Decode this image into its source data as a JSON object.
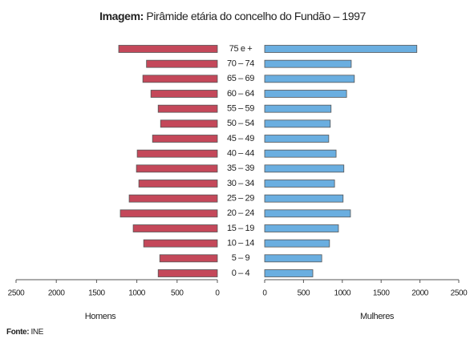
{
  "chart_data": {
    "type": "pyramid",
    "title_prefix": "Imagem:",
    "title": "Pirâmide etária do concelho do Fundão – 1997",
    "categories": [
      "75 e +",
      "70 – 74",
      "65 – 69",
      "60 – 64",
      "55 – 59",
      "50 – 54",
      "45 – 49",
      "40 – 44",
      "35 – 39",
      "30 – 34",
      "25 – 29",
      "20 – 24",
      "15 – 19",
      "10 – 14",
      "5 – 9",
      "0 – 4"
    ],
    "series": [
      {
        "name": "Homens",
        "color": "#c4485a",
        "values": [
          1225,
          880,
          925,
          825,
          735,
          705,
          805,
          995,
          1005,
          975,
          1095,
          1205,
          1045,
          915,
          715,
          735
        ]
      },
      {
        "name": "Mulheres",
        "color": "#6aaee0",
        "values": [
          1960,
          1115,
          1155,
          1055,
          855,
          845,
          825,
          920,
          1020,
          900,
          1010,
          1105,
          950,
          835,
          735,
          620
        ]
      }
    ],
    "xlim": [
      0,
      2500
    ],
    "xticks": [
      0,
      500,
      1000,
      1500,
      2000,
      2500
    ],
    "source_label": "Fonte:",
    "source": "INE"
  }
}
